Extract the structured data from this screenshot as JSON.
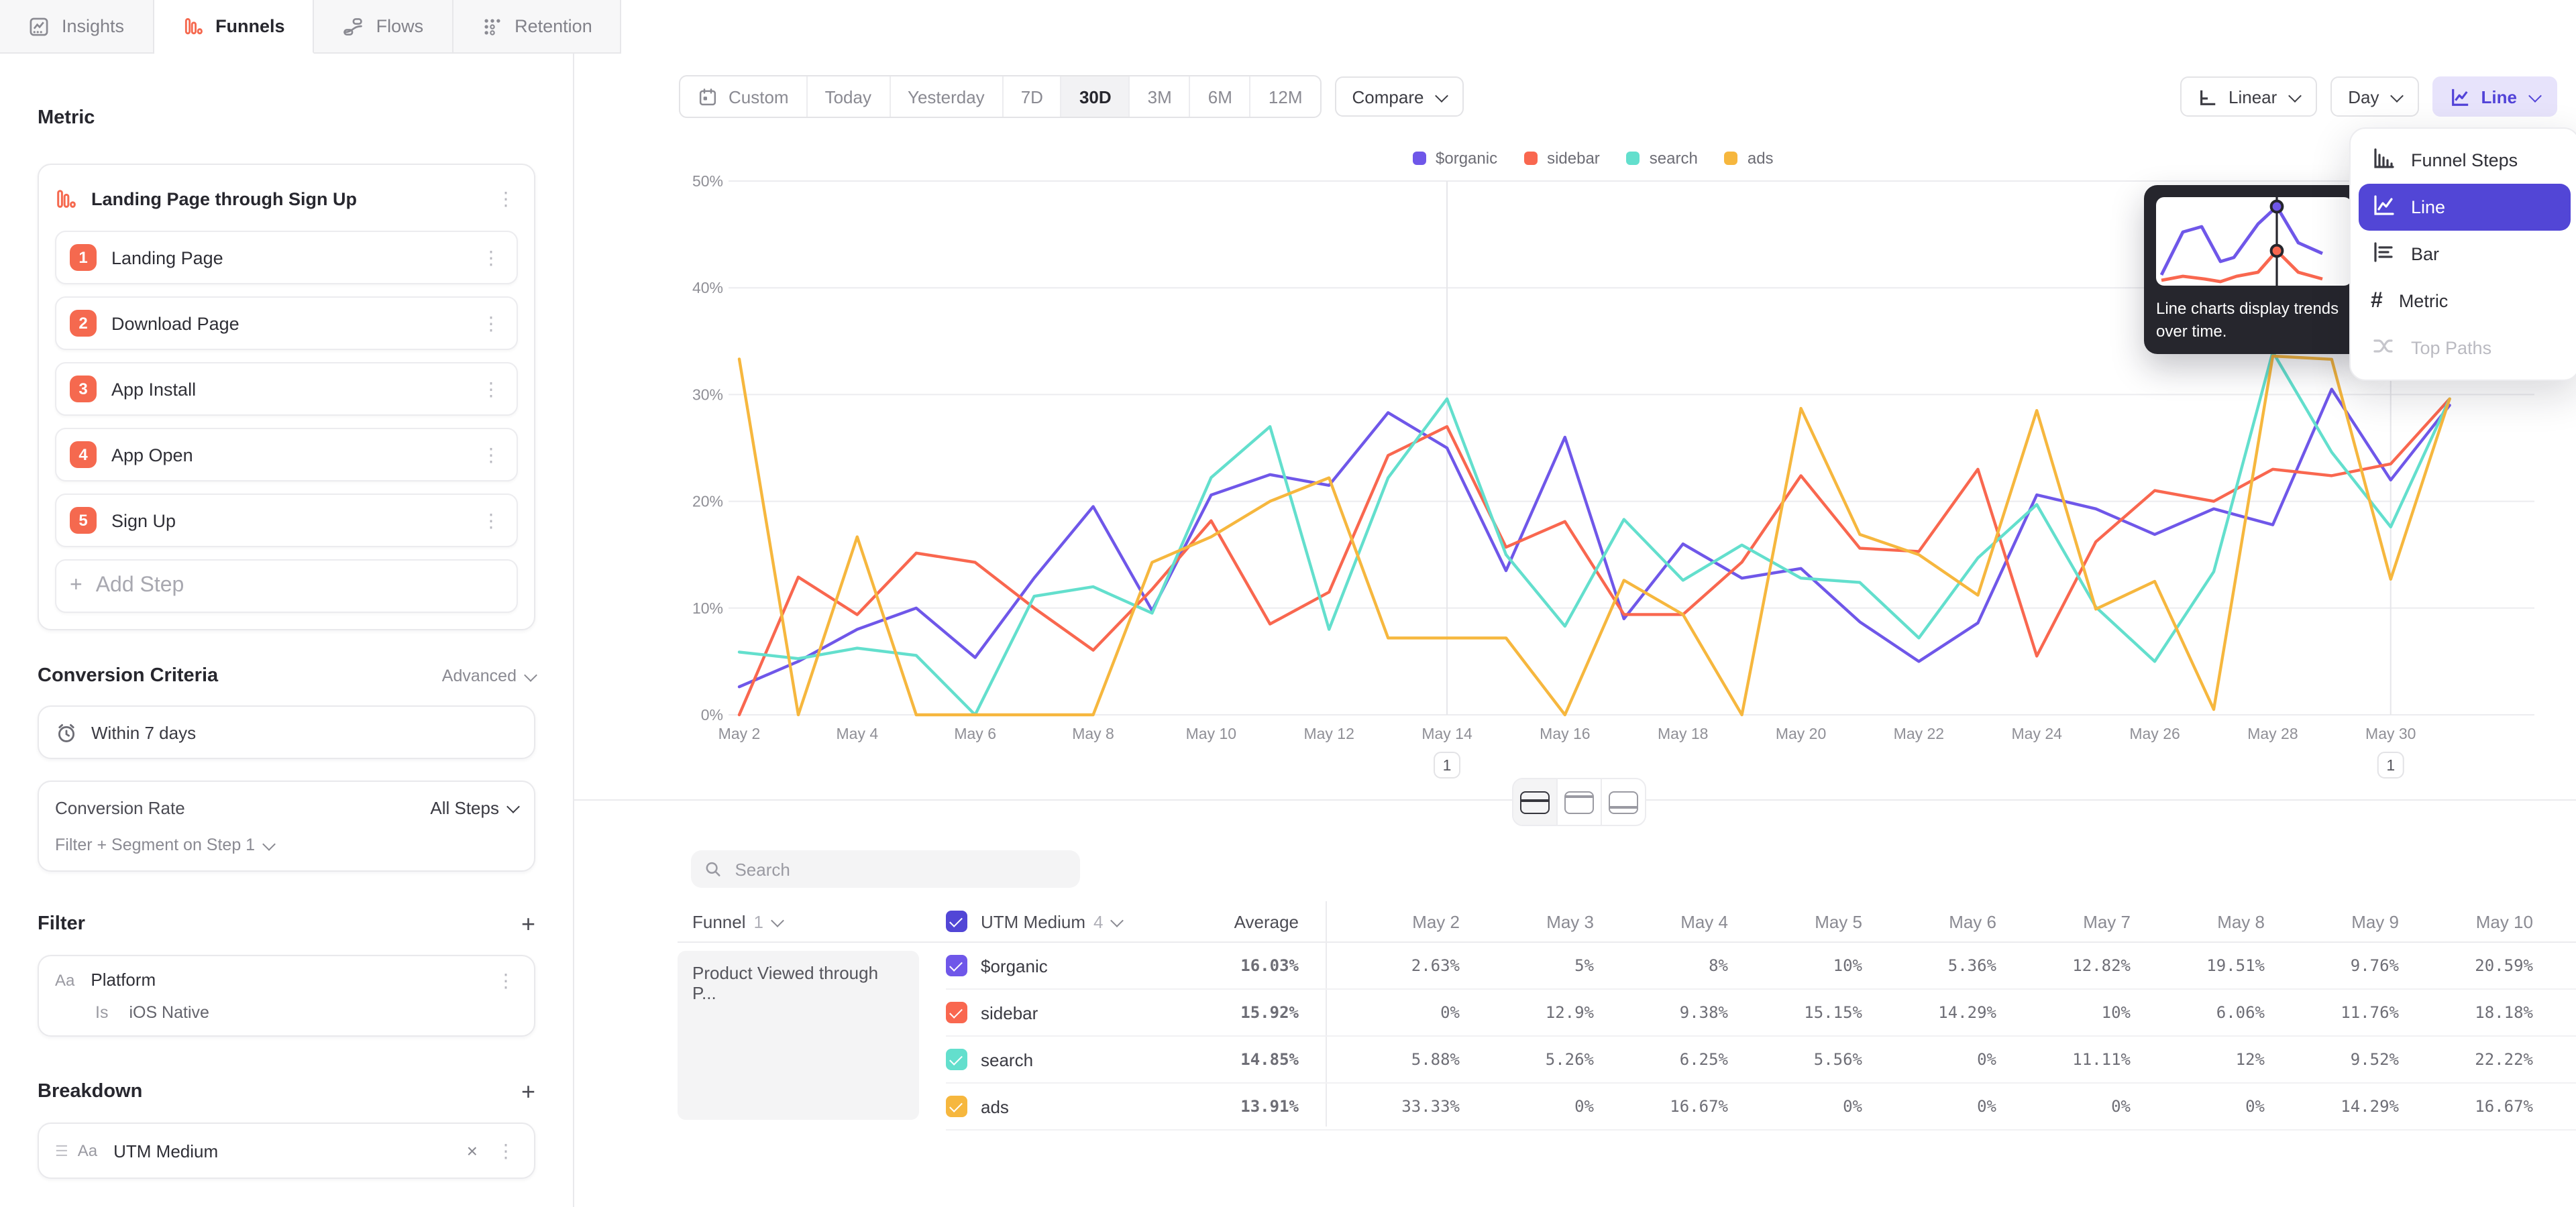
{
  "tabs": [
    {
      "label": "Insights",
      "active": false
    },
    {
      "label": "Funnels",
      "active": true
    },
    {
      "label": "Flows",
      "active": false
    },
    {
      "label": "Retention",
      "active": false
    }
  ],
  "sidebar": {
    "metric_heading": "Metric",
    "metric": {
      "title": "Landing Page through Sign Up",
      "steps": [
        {
          "num": "1",
          "label": "Landing Page"
        },
        {
          "num": "2",
          "label": "Download Page"
        },
        {
          "num": "3",
          "label": "App Install"
        },
        {
          "num": "4",
          "label": "App Open"
        },
        {
          "num": "5",
          "label": "Sign Up"
        }
      ],
      "add_step_label": "Add Step"
    },
    "conversion_criteria": {
      "heading": "Conversion Criteria",
      "advanced_label": "Advanced",
      "window_label": "Within 7 days",
      "conversion_rate_label": "Conversion Rate",
      "conversion_rate_value": "All Steps",
      "filter_segment_label": "Filter + Segment on Step 1"
    },
    "filter": {
      "heading": "Filter",
      "type_badge": "Aa",
      "property": "Platform",
      "operator": "Is",
      "value": "iOS Native"
    },
    "breakdown": {
      "heading": "Breakdown",
      "type_badge": "Aa",
      "property": "UTM Medium"
    }
  },
  "toolbar": {
    "date_ranges": [
      "Custom",
      "Today",
      "Yesterday",
      "7D",
      "30D",
      "3M",
      "6M",
      "12M"
    ],
    "active_range": "30D",
    "compare_label": "Compare",
    "scale_label": "Linear",
    "granularity_label": "Day",
    "chart_type_label": "Line"
  },
  "chart_menu": {
    "items": [
      {
        "label": "Funnel Steps",
        "icon": "funnel-steps-icon",
        "state": "normal"
      },
      {
        "label": "Line",
        "icon": "line-icon",
        "state": "selected"
      },
      {
        "label": "Bar",
        "icon": "bar-icon",
        "state": "normal"
      },
      {
        "label": "Metric",
        "icon": "metric-icon",
        "state": "normal"
      },
      {
        "label": "Top Paths",
        "icon": "top-paths-icon",
        "state": "disabled"
      }
    ]
  },
  "tooltip": {
    "text": "Line charts display trends over time."
  },
  "search": {
    "placeholder": "Search"
  },
  "chart_data": {
    "type": "line",
    "title": "",
    "xlabel": "",
    "ylabel": "",
    "ylim": [
      0,
      50
    ],
    "yticks": [
      "0%",
      "10%",
      "20%",
      "30%",
      "40%",
      "50%"
    ],
    "grid": true,
    "legend_position": "top",
    "x": [
      "May 2",
      "May 3",
      "May 4",
      "May 5",
      "May 6",
      "May 7",
      "May 8",
      "May 9",
      "May 10",
      "May 11",
      "May 12",
      "May 13",
      "May 14",
      "May 15",
      "May 16",
      "May 17",
      "May 18",
      "May 19",
      "May 20",
      "May 21",
      "May 22",
      "May 23",
      "May 24",
      "May 25",
      "May 26",
      "May 27",
      "May 28",
      "May 29",
      "May 30",
      "May 31"
    ],
    "tick_every": 2,
    "series": [
      {
        "name": "$organic",
        "color": "#6f57e9",
        "values": [
          2.63,
          5,
          8,
          10,
          5.36,
          12.82,
          19.51,
          9.76,
          20.59,
          22.5,
          21.5,
          28.3,
          25,
          13.5,
          26,
          9,
          16,
          12.8,
          13.7,
          8.7,
          5,
          8.6,
          20.6,
          19.3,
          16.9,
          19.3,
          17.8,
          30.5,
          22,
          29
        ]
      },
      {
        "name": "sidebar",
        "color": "#f9674f",
        "values": [
          0,
          12.9,
          9.38,
          15.15,
          14.29,
          10,
          6.06,
          11.76,
          18.18,
          8.5,
          11.5,
          24.3,
          27,
          15.7,
          18.1,
          9.4,
          9.4,
          14.3,
          22.4,
          15.6,
          15.3,
          23,
          5.5,
          16.2,
          21,
          20,
          23,
          22.4,
          23.5,
          29.6
        ]
      },
      {
        "name": "search",
        "color": "#63dfcd",
        "values": [
          5.88,
          5.26,
          6.25,
          5.56,
          0,
          11.11,
          12,
          9.52,
          22.22,
          27,
          8,
          22.2,
          29.6,
          15,
          8.3,
          18.3,
          12.6,
          15.9,
          12.8,
          12.4,
          7.2,
          14.7,
          19.7,
          10.1,
          5,
          13.4,
          34,
          24.6,
          17.6,
          29.6
        ]
      },
      {
        "name": "ads",
        "color": "#f6b73e",
        "values": [
          33.33,
          0,
          16.67,
          0,
          0,
          0,
          0,
          14.29,
          16.67,
          20,
          22.2,
          7.2,
          7.2,
          7.2,
          0,
          12.6,
          9.4,
          0,
          28.7,
          16.9,
          15,
          11.2,
          28.5,
          9.9,
          12.5,
          0.5,
          33.6,
          33.3,
          12.7,
          29.6
        ]
      }
    ],
    "annotations": [
      {
        "x": "May 14",
        "label": "1"
      },
      {
        "x": "May 30",
        "label": "1"
      }
    ]
  },
  "table": {
    "funnel_header": "Funnel",
    "funnel_count": "1",
    "breakdown_header": "UTM Medium",
    "breakdown_count": "4",
    "average_header": "Average",
    "date_headers": [
      "May 2",
      "May 3",
      "May 4",
      "May 5",
      "May 6",
      "May 7",
      "May 8",
      "May 9",
      "May 10"
    ],
    "group_cell": "Product Viewed through P...",
    "rows": [
      {
        "name": "$organic",
        "color": "#6f57e9",
        "average": "16.03%",
        "values": [
          "2.63%",
          "5%",
          "8%",
          "10%",
          "5.36%",
          "12.82%",
          "19.51%",
          "9.76%",
          "20.59%"
        ]
      },
      {
        "name": "sidebar",
        "color": "#f9674f",
        "average": "15.92%",
        "values": [
          "0%",
          "12.9%",
          "9.38%",
          "15.15%",
          "14.29%",
          "10%",
          "6.06%",
          "11.76%",
          "18.18%"
        ]
      },
      {
        "name": "search",
        "color": "#63dfcd",
        "average": "14.85%",
        "values": [
          "5.88%",
          "5.26%",
          "6.25%",
          "5.56%",
          "0%",
          "11.11%",
          "12%",
          "9.52%",
          "22.22%"
        ]
      },
      {
        "name": "ads",
        "color": "#f6b73e",
        "average": "13.91%",
        "values": [
          "33.33%",
          "0%",
          "16.67%",
          "0%",
          "0%",
          "0%",
          "0%",
          "14.29%",
          "16.67%"
        ]
      }
    ]
  },
  "colors": {
    "accent": "#5246d6",
    "brand_coral": "#f5694f",
    "header_checkbox": "#5246d6"
  }
}
